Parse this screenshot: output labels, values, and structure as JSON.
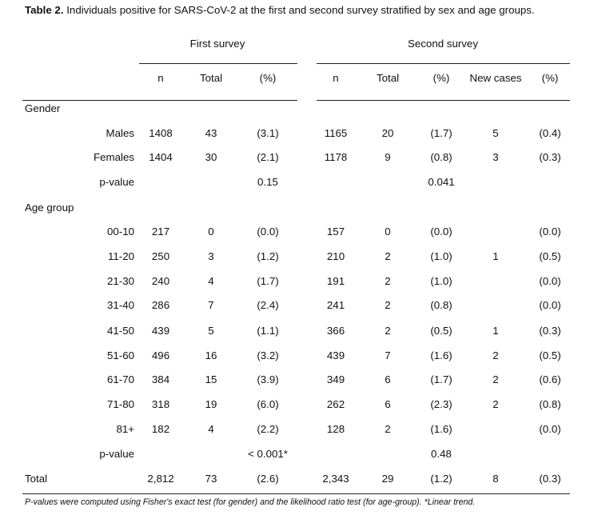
{
  "caption": {
    "label": "Table 2.",
    "text": " Individuals positive for SARS-CoV-2 at the first and second survey stratified by sex and age groups."
  },
  "headers": {
    "first_survey": "First survey",
    "second_survey": "Second survey",
    "cols": [
      "n",
      "Total",
      "(%)",
      "n",
      "Total",
      "(%)",
      "New cases",
      "(%)"
    ]
  },
  "sections": {
    "gender": "Gender",
    "age_group": "Age group",
    "total": "Total"
  },
  "rows": [
    {
      "label": "Males",
      "cells": [
        "1408",
        "43",
        "(3.1)",
        "1165",
        "20",
        "(1.7)",
        "5",
        "(0.4)"
      ]
    },
    {
      "label": "Females",
      "cells": [
        "1404",
        "30",
        "(2.1)",
        "1178",
        "9",
        "(0.8)",
        "3",
        "(0.3)"
      ]
    },
    {
      "label": "p-value",
      "cells": [
        "",
        "",
        "0.15",
        "",
        "",
        "0.041",
        "",
        ""
      ]
    },
    {
      "label": "00-10",
      "cells": [
        "217",
        "0",
        "(0.0)",
        "157",
        "0",
        "(0.0)",
        "",
        "(0.0)"
      ]
    },
    {
      "label": "11-20",
      "cells": [
        "250",
        "3",
        "(1.2)",
        "210",
        "2",
        "(1.0)",
        "1",
        "(0.5)"
      ]
    },
    {
      "label": "21-30",
      "cells": [
        "240",
        "4",
        "(1.7)",
        "191",
        "2",
        "(1.0)",
        "",
        "(0.0)"
      ]
    },
    {
      "label": "31-40",
      "cells": [
        "286",
        "7",
        "(2.4)",
        "241",
        "2",
        "(0.8)",
        "",
        "(0.0)"
      ]
    },
    {
      "label": "41-50",
      "cells": [
        "439",
        "5",
        "(1.1)",
        "366",
        "2",
        "(0.5)",
        "1",
        "(0.3)"
      ]
    },
    {
      "label": "51-60",
      "cells": [
        "496",
        "16",
        "(3.2)",
        "439",
        "7",
        "(1.6)",
        "2",
        "(0.5)"
      ]
    },
    {
      "label": "61-70",
      "cells": [
        "384",
        "15",
        "(3.9)",
        "349",
        "6",
        "(1.7)",
        "2",
        "(0.6)"
      ]
    },
    {
      "label": "71-80",
      "cells": [
        "318",
        "19",
        "(6.0)",
        "262",
        "6",
        "(2.3)",
        "2",
        "(0.8)"
      ]
    },
    {
      "label": "81+",
      "cells": [
        "182",
        "4",
        "(2.2)",
        "128",
        "2",
        "(1.6)",
        "",
        "(0.0)"
      ]
    },
    {
      "label": "p-value",
      "cells": [
        "",
        "",
        "< 0.001*",
        "",
        "",
        "0.48",
        "",
        ""
      ]
    },
    {
      "label": "",
      "cells": [
        "2,812",
        "73",
        "(2.6)",
        "2,343",
        "29",
        "(1.2)",
        "8",
        "(0.3)"
      ]
    }
  ],
  "footnote": "P-values were computed using Fisher's exact test (for gender) and the likelihood ratio test (for age-group). *Linear trend."
}
